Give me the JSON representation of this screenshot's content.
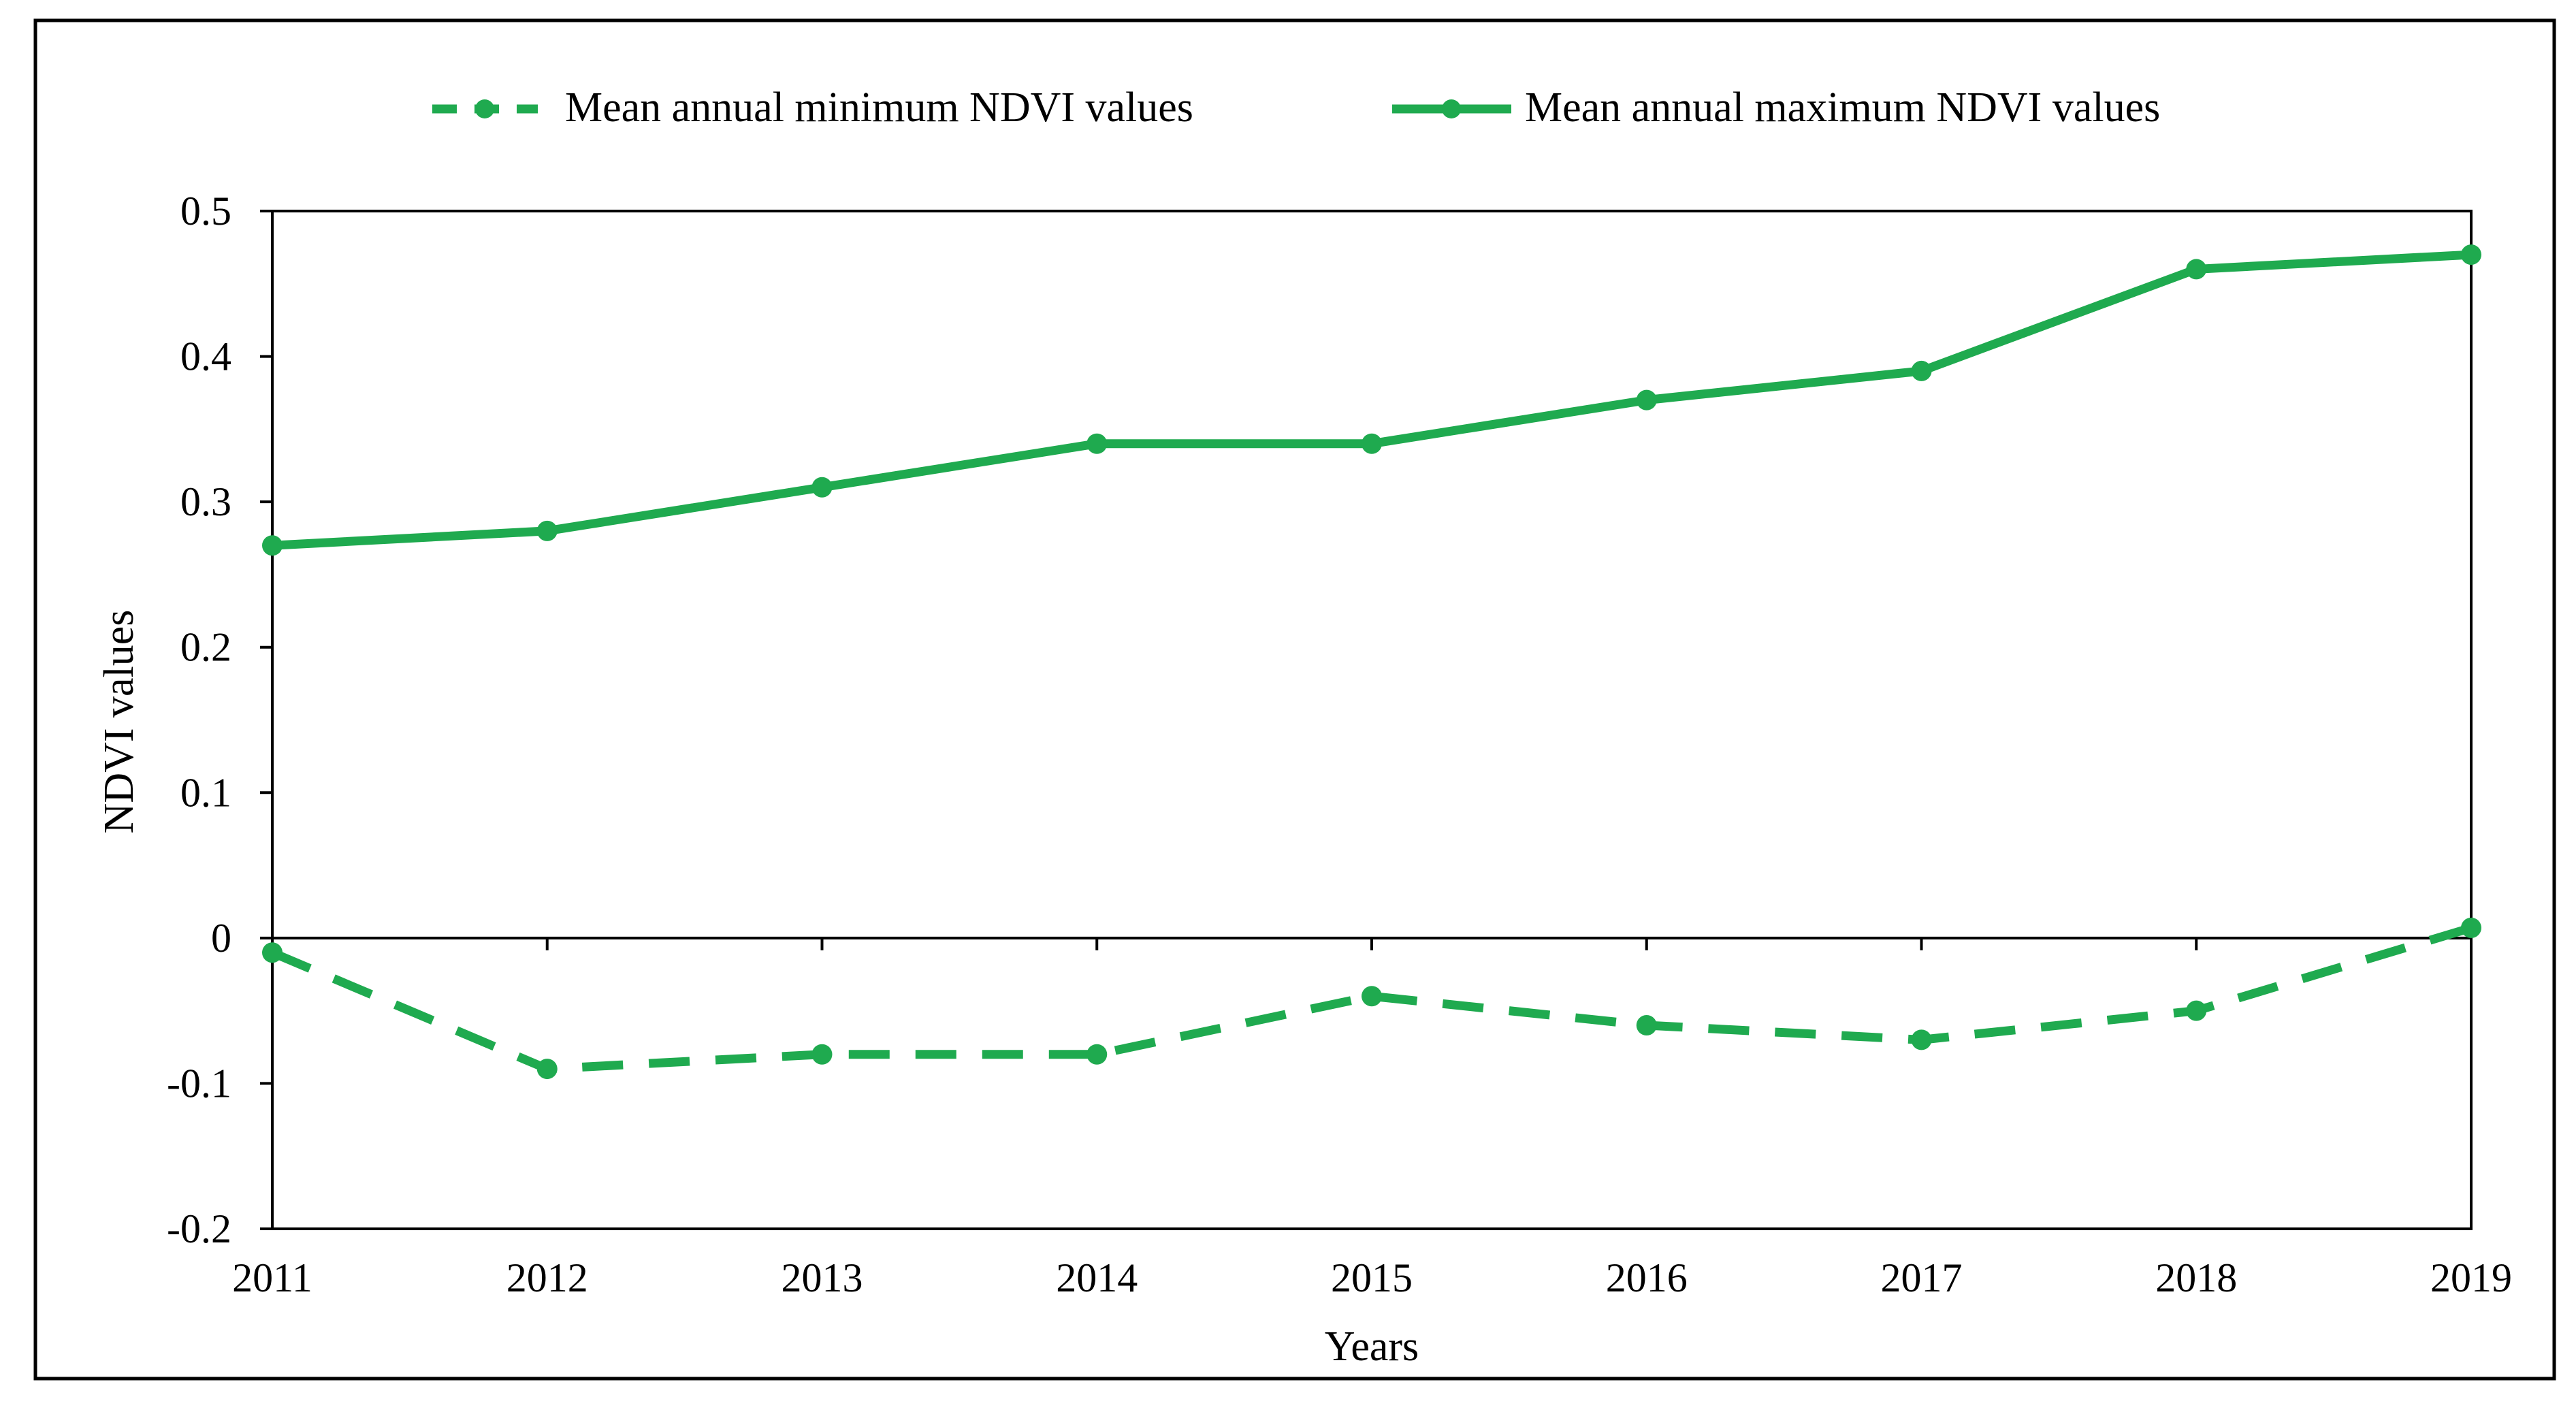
{
  "chart_data": {
    "type": "line",
    "title": "",
    "xlabel": "Years",
    "ylabel": "NDVI values",
    "x": [
      2011,
      2012,
      2013,
      2014,
      2015,
      2016,
      2017,
      2018,
      2019
    ],
    "x_tick_labels": [
      "2011",
      "2012",
      "2013",
      "2014",
      "2015",
      "2016",
      "2017",
      "2018",
      "2019"
    ],
    "ylim": [
      -0.2,
      0.5
    ],
    "y_ticks": [
      -0.2,
      -0.1,
      0,
      0.1,
      0.2,
      0.3,
      0.4,
      0.5
    ],
    "y_tick_labels": [
      "-0.2",
      "-0.1",
      "0",
      "0.1",
      "0.2",
      "0.3",
      "0.4",
      "0.5"
    ],
    "grid": false,
    "legend_position": "top",
    "series": [
      {
        "name": "Mean annual minimum NDVI values",
        "style": "dashed",
        "color": "#1faa4f",
        "values": [
          -0.01,
          -0.09,
          -0.08,
          -0.08,
          -0.04,
          -0.06,
          -0.07,
          -0.05,
          0.007
        ]
      },
      {
        "name": "Mean annual maximum NDVI values",
        "style": "solid",
        "color": "#1faa4f",
        "values": [
          0.27,
          0.28,
          0.31,
          0.34,
          0.34,
          0.37,
          0.39,
          0.46,
          0.47
        ]
      }
    ]
  }
}
